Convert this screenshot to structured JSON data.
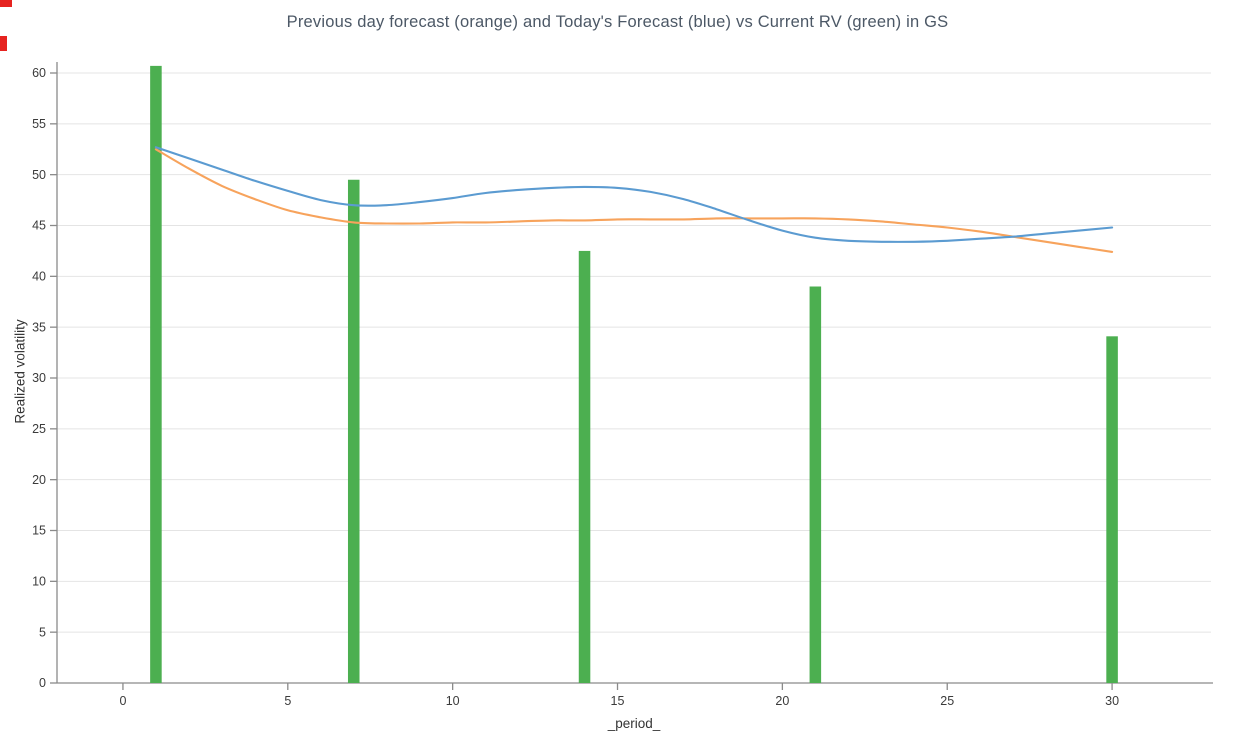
{
  "colors": {
    "axis": "#8a8a8a",
    "grid": "#e4e4e4",
    "tick_text": "#3b3b3b",
    "title": "#4c5866",
    "artifact_red": "#e62320"
  },
  "chart_data": {
    "type": "combo",
    "title": "Previous day forecast (orange) and Today's Forecast (blue) vs Current RV (green) in GS",
    "xlabel": "_period_",
    "ylabel": "Realized volatility",
    "xlim": [
      -2,
      33
    ],
    "ylim": [
      0,
      60
    ],
    "x_ticks": [
      0,
      5,
      10,
      15,
      20,
      25,
      30
    ],
    "y_ticks": [
      0,
      5,
      10,
      15,
      20,
      25,
      30,
      35,
      40,
      45,
      50,
      55,
      60
    ],
    "grid": "horizontal",
    "bars": {
      "name": "Current RV",
      "color": "#4caf50",
      "bar_width_units": 0.35,
      "x": [
        1,
        7,
        14,
        21,
        30
      ],
      "values": [
        60.7,
        49.5,
        42.5,
        39.0,
        34.1
      ]
    },
    "series": [
      {
        "name": "Previous day forecast",
        "type": "line",
        "color": "#f7a35c",
        "x": [
          1,
          2,
          3,
          4,
          5,
          6,
          7,
          8,
          9,
          10,
          11,
          12,
          13,
          14,
          15,
          16,
          17,
          18,
          19,
          20,
          21,
          22,
          23,
          24,
          25,
          26,
          27,
          28,
          29,
          30
        ],
        "values": [
          52.5,
          50.6,
          48.9,
          47.6,
          46.5,
          45.8,
          45.3,
          45.2,
          45.2,
          45.3,
          45.3,
          45.4,
          45.5,
          45.5,
          45.6,
          45.6,
          45.6,
          45.7,
          45.7,
          45.7,
          45.7,
          45.6,
          45.4,
          45.1,
          44.8,
          44.4,
          43.9,
          43.4,
          42.9,
          42.4
        ]
      },
      {
        "name": "Today's Forecast",
        "type": "line",
        "color": "#5b9bd1",
        "x": [
          1,
          2,
          3,
          4,
          5,
          6,
          7,
          8,
          9,
          10,
          11,
          12,
          13,
          14,
          15,
          16,
          17,
          18,
          19,
          20,
          21,
          22,
          23,
          24,
          25,
          26,
          27,
          28,
          29,
          30
        ],
        "values": [
          52.7,
          51.6,
          50.5,
          49.4,
          48.4,
          47.5,
          47.0,
          47.0,
          47.3,
          47.7,
          48.2,
          48.5,
          48.7,
          48.8,
          48.7,
          48.3,
          47.6,
          46.6,
          45.5,
          44.5,
          43.8,
          43.5,
          43.4,
          43.4,
          43.5,
          43.7,
          43.9,
          44.2,
          44.5,
          44.8
        ]
      }
    ]
  }
}
